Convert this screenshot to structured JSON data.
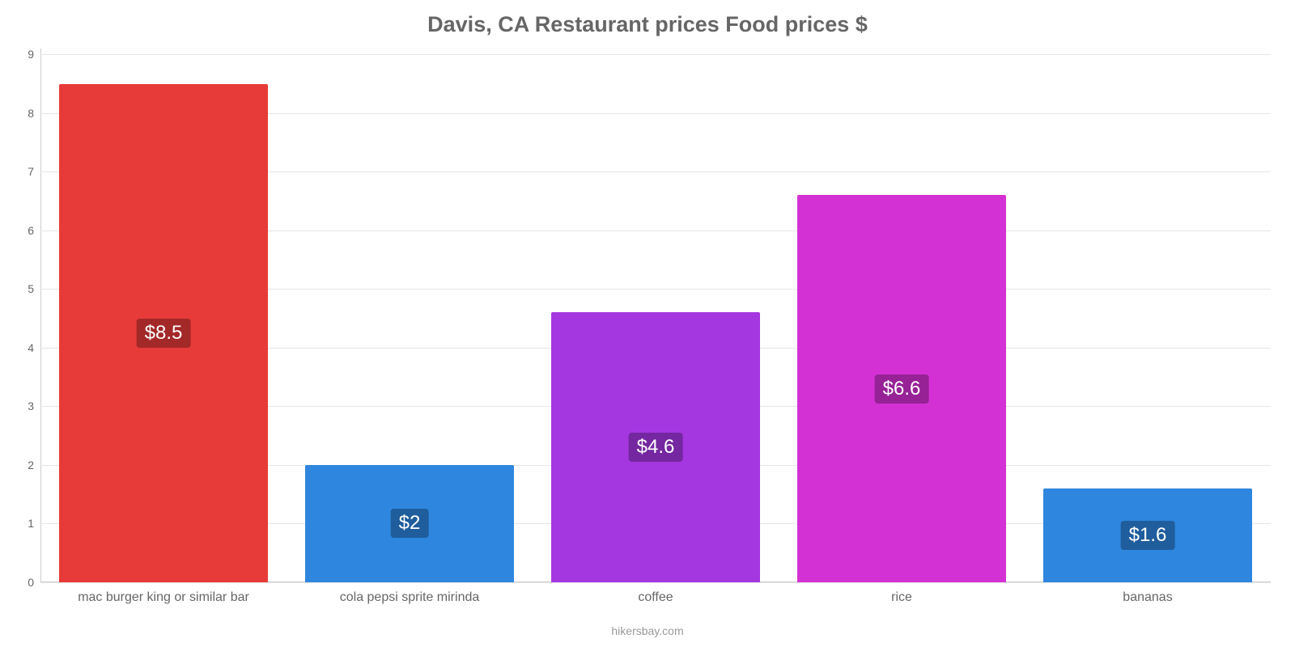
{
  "chart": {
    "type": "bar",
    "title": "Davis, CA Restaurant prices Food prices $",
    "title_color": "#666666",
    "title_fontsize": 27,
    "background_color": "#ffffff",
    "grid_color": "#e6e6e6",
    "axis_color": "#cccccc",
    "x_axis_title": "hikersbay.com",
    "x_axis_title_color": "#999999",
    "ylim": [
      0,
      9.1
    ],
    "yticks": [
      0,
      1,
      2,
      3,
      4,
      5,
      6,
      7,
      8,
      9
    ],
    "tick_fontsize": 14,
    "tick_color": "#666666",
    "bar_width_ratio": 0.85,
    "categories": [
      "mac burger king or similar bar",
      "cola pepsi sprite mirinda",
      "coffee",
      "rice",
      "bananas"
    ],
    "values": [
      8.5,
      2,
      4.6,
      6.6,
      1.6
    ],
    "value_labels": [
      "$8.5",
      "$2",
      "$4.6",
      "$6.6",
      "$1.6"
    ],
    "bar_colors": [
      "#e73b39",
      "#2e86de",
      "#a537e0",
      "#d431d4",
      "#2e86de"
    ],
    "label_bg_colors": [
      "#a32828",
      "#1f5d9c",
      "#7427a0",
      "#962296",
      "#1f5d9c"
    ],
    "label_fontsize": 24,
    "label_color": "#ffffff"
  }
}
